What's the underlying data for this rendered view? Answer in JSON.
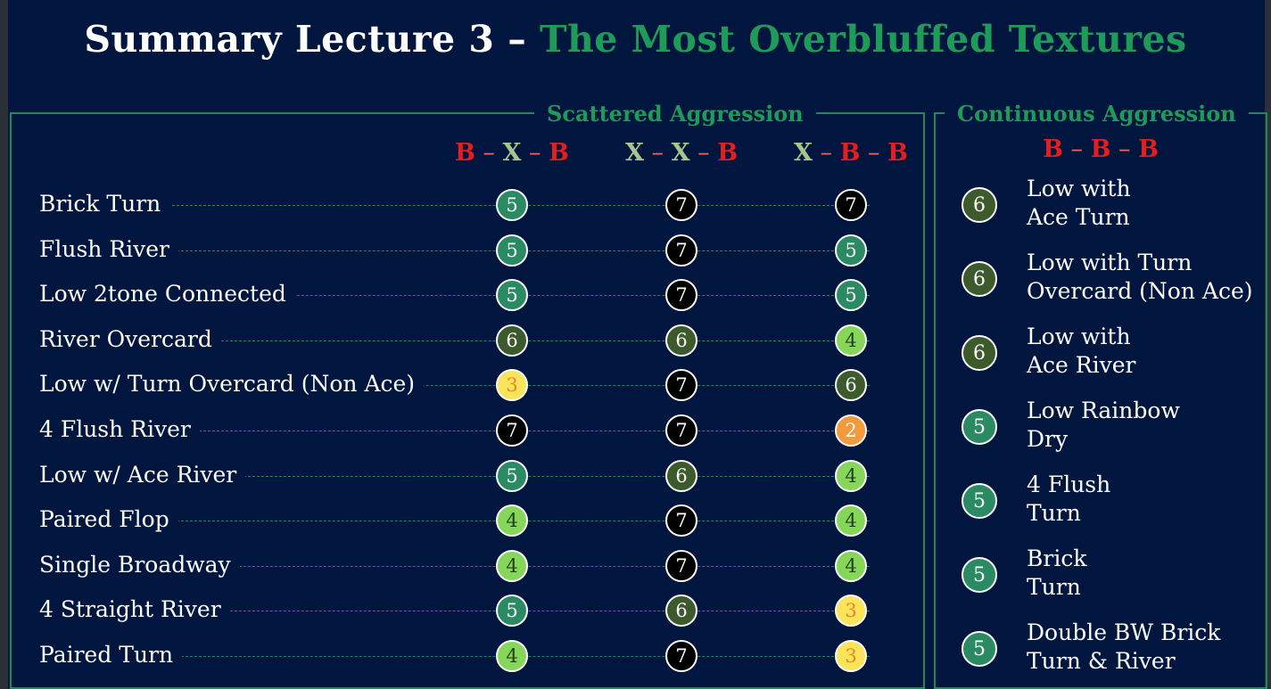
{
  "title": {
    "main": "Summary Lecture 3 – ",
    "accent": "The Most Overbluffed Textures"
  },
  "scattered": {
    "label": "Scattered Aggression",
    "columns": [
      [
        {
          "t": "B",
          "c": "b"
        },
        {
          "t": " – ",
          "c": "d"
        },
        {
          "t": "X",
          "c": "x"
        },
        {
          "t": " – ",
          "c": "d"
        },
        {
          "t": "B",
          "c": "b"
        }
      ],
      [
        {
          "t": "X",
          "c": "x"
        },
        {
          "t": " – ",
          "c": "d"
        },
        {
          "t": "X",
          "c": "x"
        },
        {
          "t": " – ",
          "c": "d"
        },
        {
          "t": "B",
          "c": "b"
        }
      ],
      [
        {
          "t": "X",
          "c": "x"
        },
        {
          "t": " – ",
          "c": "d"
        },
        {
          "t": "B",
          "c": "b"
        },
        {
          "t": " – ",
          "c": "d"
        },
        {
          "t": "B",
          "c": "b"
        }
      ]
    ],
    "rows": [
      {
        "label": "Brick Turn",
        "values": [
          5,
          7,
          7
        ]
      },
      {
        "label": "Flush River",
        "values": [
          5,
          7,
          5
        ]
      },
      {
        "label": "Low 2tone Connected",
        "values": [
          5,
          7,
          5
        ]
      },
      {
        "label": "River Overcard",
        "values": [
          6,
          6,
          4
        ]
      },
      {
        "label": "Low w/ Turn Overcard (Non Ace)",
        "values": [
          3,
          7,
          6
        ]
      },
      {
        "label": "4 Flush River",
        "values": [
          7,
          7,
          2
        ]
      },
      {
        "label": "Low w/ Ace River",
        "values": [
          5,
          6,
          4
        ]
      },
      {
        "label": "Paired Flop",
        "values": [
          4,
          7,
          4
        ]
      },
      {
        "label": "Single Broadway",
        "values": [
          4,
          7,
          4
        ]
      },
      {
        "label": "4 Straight River",
        "values": [
          5,
          6,
          3
        ]
      },
      {
        "label": "Paired Turn",
        "values": [
          4,
          7,
          3
        ]
      }
    ]
  },
  "continuous": {
    "label": "Continuous Aggression",
    "column": [
      {
        "t": "B",
        "c": "b"
      },
      {
        "t": " – ",
        "c": "d"
      },
      {
        "t": "B",
        "c": "b"
      },
      {
        "t": " – ",
        "c": "d"
      },
      {
        "t": "B",
        "c": "b"
      }
    ],
    "items": [
      {
        "lines": [
          "Low with",
          "Ace Turn"
        ],
        "value": 6
      },
      {
        "lines": [
          "Low with Turn",
          "Overcard (Non Ace)"
        ],
        "value": 6
      },
      {
        "lines": [
          "Low with",
          "Ace River"
        ],
        "value": 6
      },
      {
        "lines": [
          "Low Rainbow",
          "Dry"
        ],
        "value": 5
      },
      {
        "lines": [
          "4 Flush",
          "Turn"
        ],
        "value": 5
      },
      {
        "lines": [
          "Brick",
          "Turn"
        ],
        "value": 5
      },
      {
        "lines": [
          "Double BW Brick",
          "Turn & River"
        ],
        "value": 5
      }
    ]
  },
  "score_colors": {
    "2": "#f29a3c",
    "3": "#fce45a",
    "4": "#86d65a",
    "5": "#2a8a63",
    "6": "#3d5a2c",
    "7": "#000000"
  }
}
